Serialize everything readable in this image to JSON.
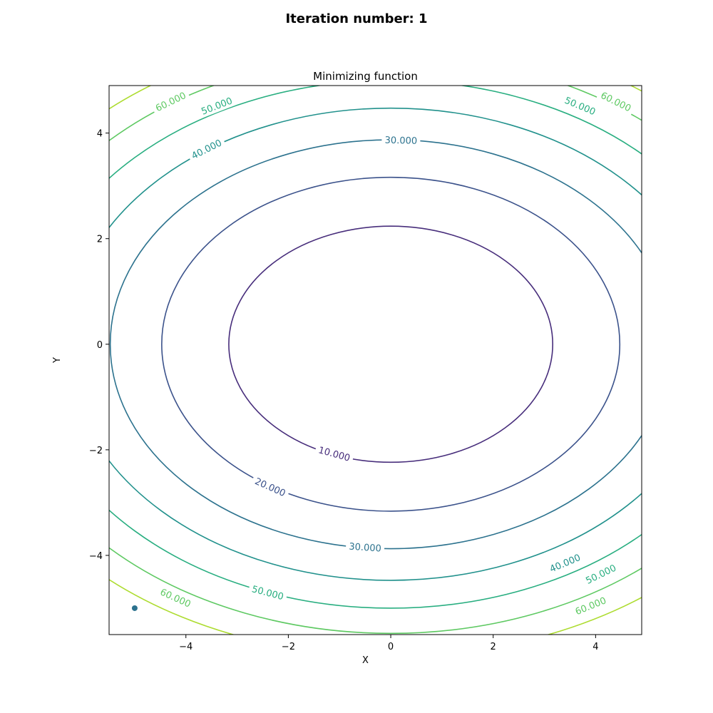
{
  "figure": {
    "suptitle": "Iteration number: 1"
  },
  "chart_data": {
    "type": "contour",
    "title": "Minimizing function",
    "xlabel": "X",
    "ylabel": "Y",
    "xlim": [
      -5.5,
      4.9
    ],
    "ylim": [
      -5.5,
      4.9
    ],
    "xticks": [
      -4,
      -2,
      0,
      2,
      4
    ],
    "yticks": [
      -4,
      -2,
      0,
      2,
      4
    ],
    "tick_labels": [
      "−4",
      "−2",
      "0",
      "2",
      "4"
    ],
    "function": "f(x, y) = x^2 + 2y^2",
    "grid": false,
    "levels": [
      {
        "value": 10,
        "label": "10.000",
        "color": "#472d7b"
      },
      {
        "value": 20,
        "label": "20.000",
        "color": "#3b528b"
      },
      {
        "value": 30,
        "label": "30.000",
        "color": "#2c728e"
      },
      {
        "value": 40,
        "label": "40.000",
        "color": "#21918c"
      },
      {
        "value": 50,
        "label": "50.000",
        "color": "#28ae80"
      },
      {
        "value": 60,
        "label": "60.000",
        "color": "#5ec962"
      },
      {
        "value": 70,
        "label": "",
        "color": "#addc30"
      }
    ],
    "contour_labels": [
      {
        "level": 10,
        "x": -1.1,
        "y": -2.07
      },
      {
        "level": 20,
        "x": -2.35,
        "y": -2.7
      },
      {
        "level": 30,
        "x": -0.5,
        "y": -3.84
      },
      {
        "level": 30,
        "x": 0.2,
        "y": 3.87
      },
      {
        "level": 40,
        "x": -3.6,
        "y": 3.7
      },
      {
        "level": 40,
        "x": 3.4,
        "y": -4.14
      },
      {
        "level": 50,
        "x": -3.4,
        "y": 4.52
      },
      {
        "level": 50,
        "x": -2.4,
        "y": -4.7
      },
      {
        "level": 50,
        "x": 3.7,
        "y": 4.52
      },
      {
        "level": 50,
        "x": 4.1,
        "y": -4.35
      },
      {
        "level": 60,
        "x": -4.3,
        "y": 4.6
      },
      {
        "level": 60,
        "x": -4.2,
        "y": -4.8
      },
      {
        "level": 60,
        "x": 4.4,
        "y": 4.6
      },
      {
        "level": 60,
        "x": 3.9,
        "y": -4.95
      }
    ],
    "points": [
      {
        "x": -5,
        "y": -5,
        "color": "#2c728e"
      }
    ]
  }
}
